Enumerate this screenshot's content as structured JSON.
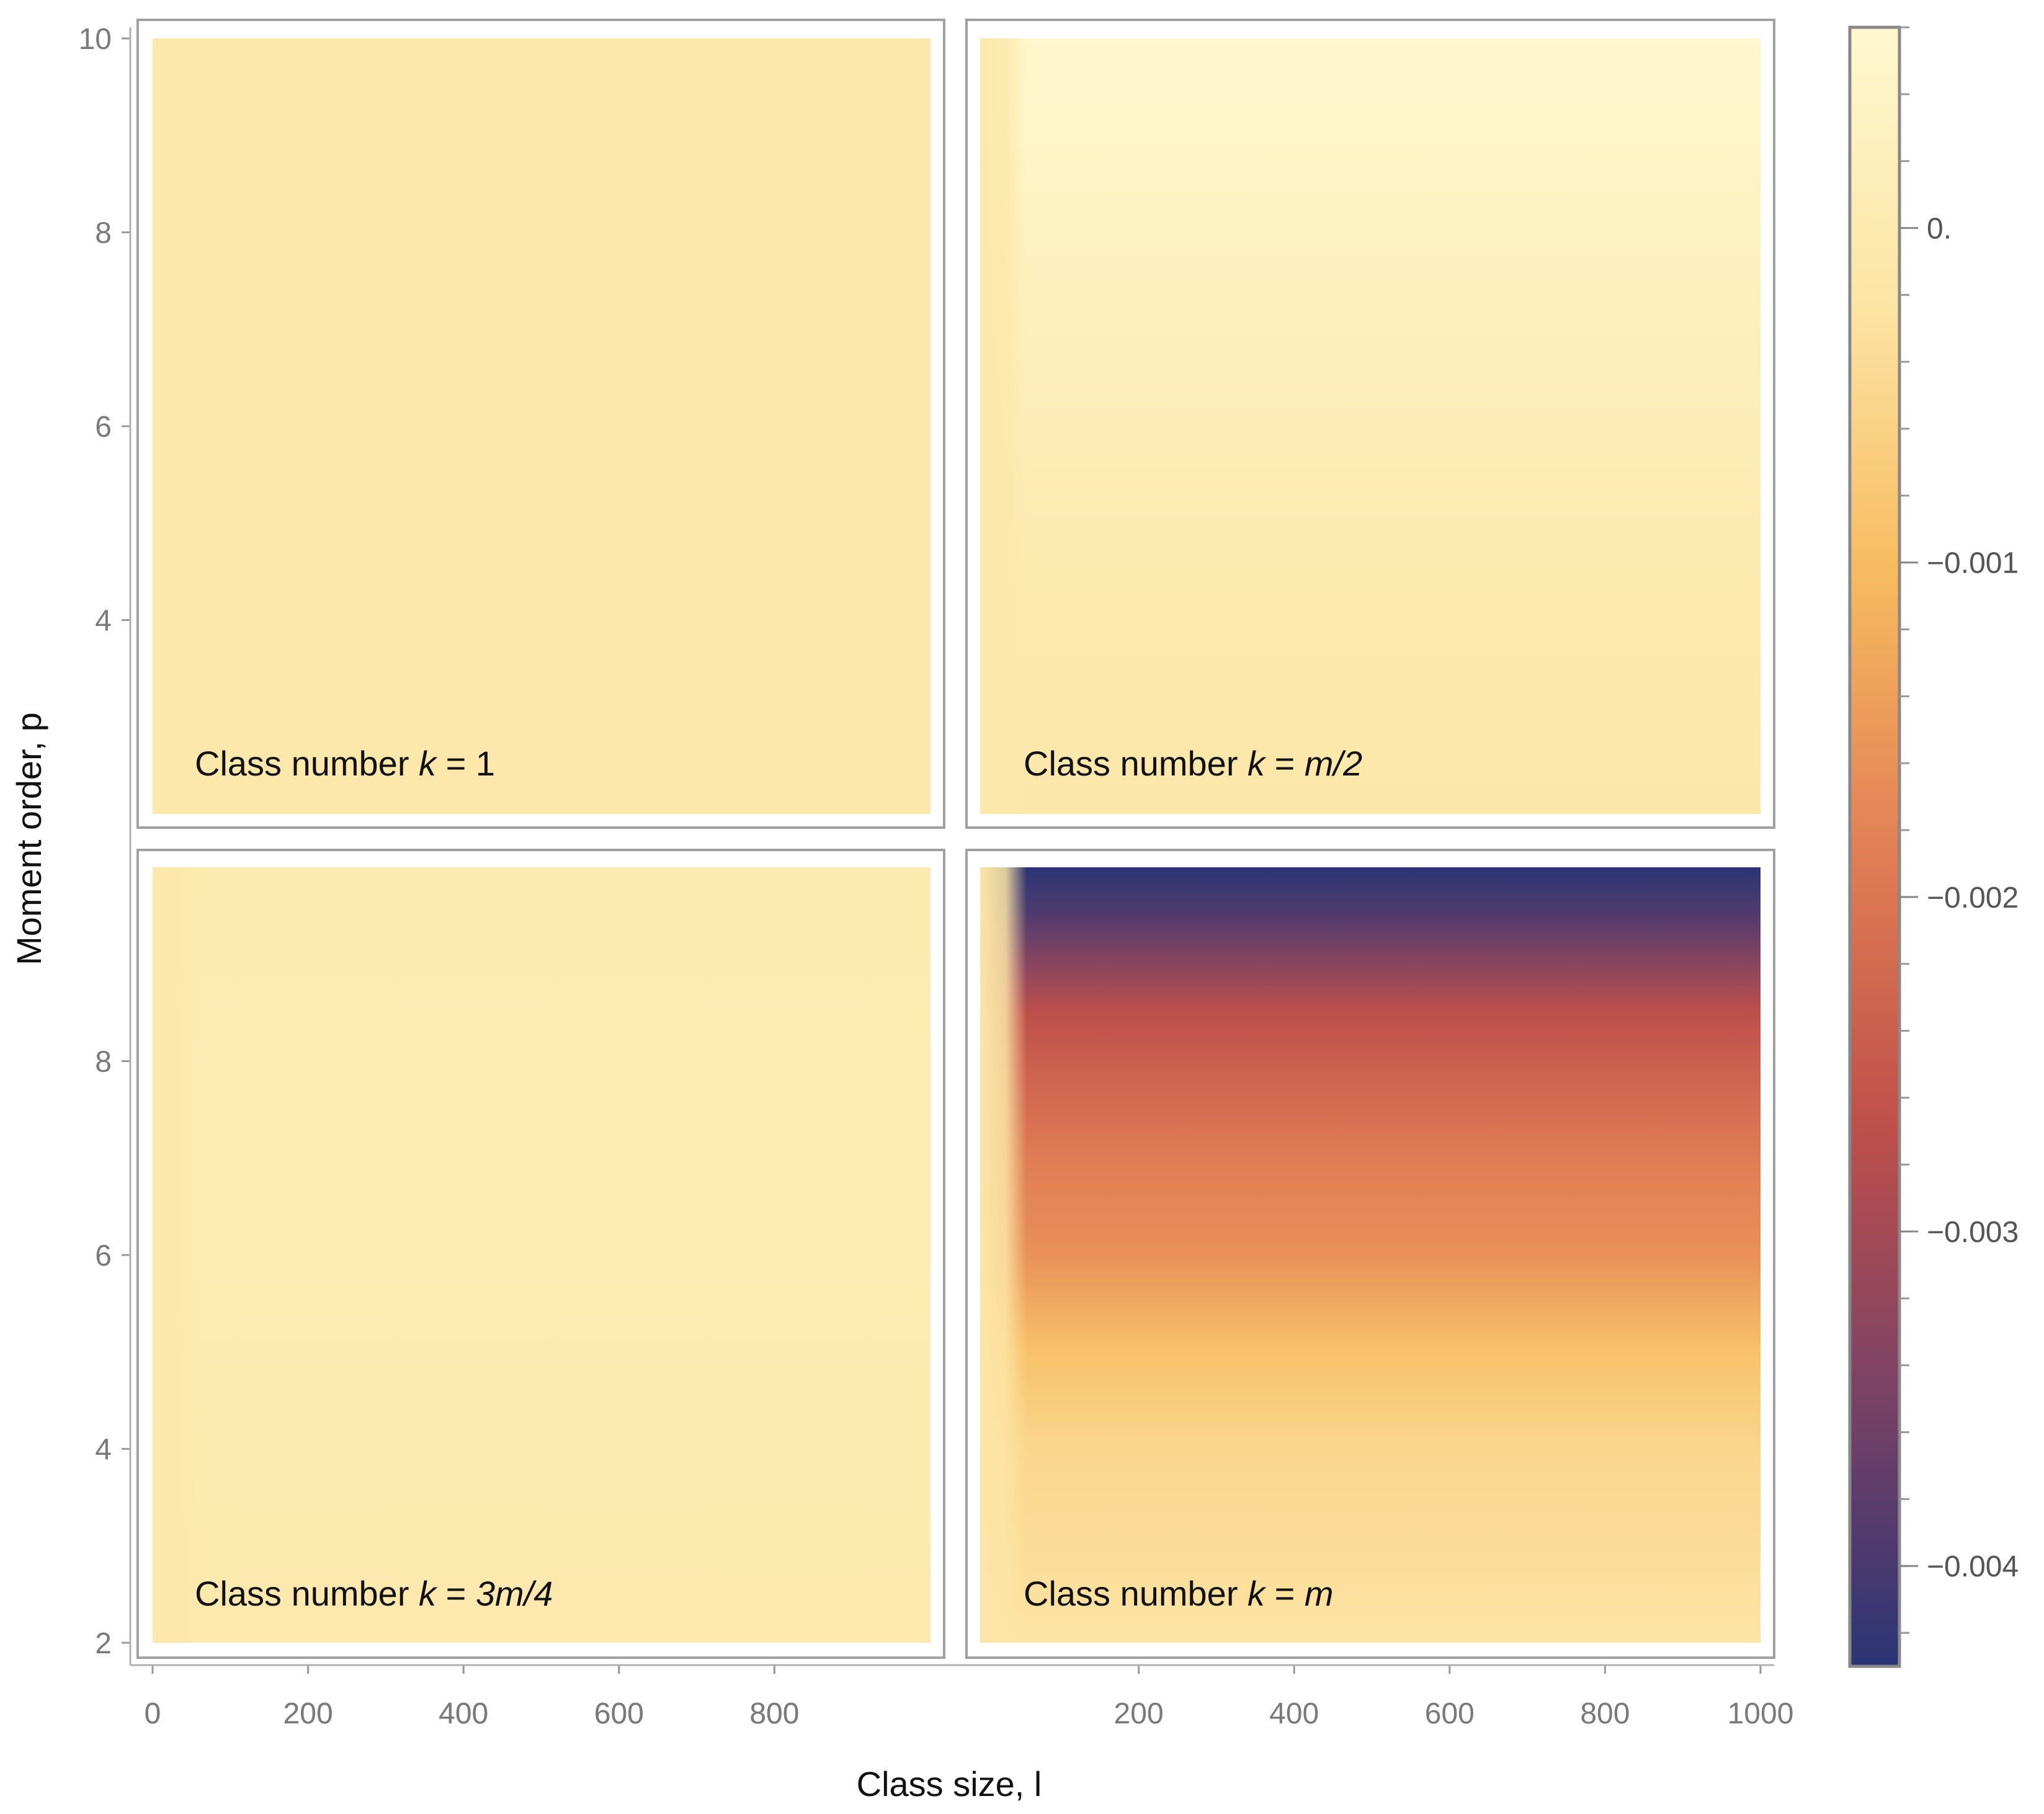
{
  "chart_data": {
    "type": "heatmap",
    "xlabel": "Class size, l",
    "ylabel": "Moment order, p",
    "x_range": [
      0,
      1000
    ],
    "y_range": [
      2,
      10
    ],
    "colormap": [
      "#2b3475",
      "#7a4265",
      "#c0504a",
      "#e17f55",
      "#f7bb5f",
      "#fce5a5",
      "#fff8d0"
    ],
    "colorbar": {
      "range": [
        -0.0043,
        0.0006
      ],
      "ticks": [
        {
          "value": 0.0,
          "label": "0."
        },
        {
          "value": -0.001,
          "label": "−0.001"
        },
        {
          "value": -0.002,
          "label": "−0.002"
        },
        {
          "value": -0.003,
          "label": "−0.003"
        },
        {
          "value": -0.004,
          "label": "−0.004"
        }
      ]
    },
    "panels": [
      {
        "id": "k1",
        "label_prefix": "Class number ",
        "label_var": "k",
        "label_eq": " = 1",
        "label_tail": "",
        "x_ticks": [
          0,
          200,
          400,
          600,
          800
        ],
        "y_ticks": [
          4,
          6,
          8,
          10
        ],
        "rows": [
          {
            "p": 2,
            "value": -0.0001
          },
          {
            "p": 4,
            "value": -0.0001
          },
          {
            "p": 6,
            "value": -0.0001
          },
          {
            "p": 8,
            "value": -0.0001
          },
          {
            "p": 10,
            "value": -0.0001
          }
        ],
        "edge": null
      },
      {
        "id": "k_half",
        "label_prefix": "Class number ",
        "label_var": "k",
        "label_eq": " = ",
        "label_tail": "m/2",
        "x_ticks": [],
        "y_ticks": [],
        "rows": [
          {
            "p": 2,
            "value": -0.00012
          },
          {
            "p": 4,
            "value": -6e-05
          },
          {
            "p": 6,
            "value": 0.0001
          },
          {
            "p": 7,
            "value": 0.0002
          },
          {
            "p": 8,
            "value": 0.0003
          },
          {
            "p": 9,
            "value": 0.00045
          },
          {
            "p": 10,
            "value": 0.00055
          }
        ],
        "edge": {
          "x_end": 60,
          "value": -0.0001
        }
      },
      {
        "id": "k_3q",
        "label_prefix": "Class number ",
        "label_var": "k",
        "label_eq": " = ",
        "label_tail": "3m/4",
        "x_ticks": [
          0,
          200,
          400,
          600,
          800
        ],
        "y_ticks": [
          2,
          4,
          6,
          8
        ],
        "rows": [
          {
            "p": 2,
            "value": -5e-05
          },
          {
            "p": 4,
            "value": 0.0
          },
          {
            "p": 6,
            "value": 5e-05
          },
          {
            "p": 8,
            "value": 5e-05
          },
          {
            "p": 10,
            "value": 0.0
          }
        ],
        "edge": {
          "x_end": 60,
          "value": -0.0001
        }
      },
      {
        "id": "k_m",
        "label_prefix": "Class number ",
        "label_var": "k",
        "label_eq": " = ",
        "label_tail": "m",
        "x_ticks": [
          200,
          400,
          600,
          800,
          1000
        ],
        "y_ticks": [],
        "rows": [
          {
            "p": 2,
            "value": -0.0002
          },
          {
            "p": 3,
            "value": -0.0004
          },
          {
            "p": 4,
            "value": -0.0005
          },
          {
            "p": 5,
            "value": -0.0009
          },
          {
            "p": 6,
            "value": -0.0016
          },
          {
            "p": 7,
            "value": -0.0019
          },
          {
            "p": 8,
            "value": -0.0024
          },
          {
            "p": 8.5,
            "value": -0.0027
          },
          {
            "p": 9,
            "value": -0.0033
          },
          {
            "p": 9.5,
            "value": -0.0039
          },
          {
            "p": 10,
            "value": -0.0043
          }
        ],
        "edge": {
          "x_end": 60,
          "value": -0.0002
        }
      }
    ]
  }
}
